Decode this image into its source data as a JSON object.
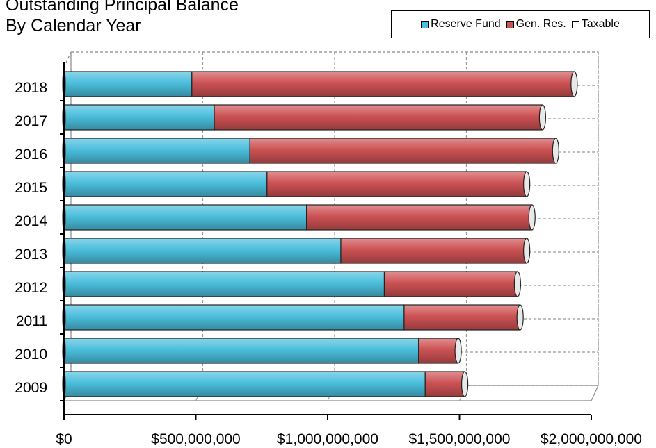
{
  "chart_data": {
    "type": "bar",
    "orientation": "horizontal",
    "stacked": true,
    "style_3d": true,
    "title": [
      "Outstanding Principal Balance",
      "By Calendar Year"
    ],
    "categories": [
      "2009",
      "2010",
      "2011",
      "2012",
      "2013",
      "2014",
      "2015",
      "2016",
      "2017",
      "2018"
    ],
    "series": [
      {
        "name": "Reserve Fund",
        "color": "#4bbfdd",
        "values": [
          1370000000,
          1345000000,
          1290000000,
          1215000000,
          1050000000,
          920000000,
          770000000,
          705000000,
          570000000,
          485000000
        ]
      },
      {
        "name": "Gen. Res.",
        "color": "#cd5254",
        "values": [
          150000000,
          150000000,
          440000000,
          505000000,
          705000000,
          855000000,
          985000000,
          1160000000,
          1245000000,
          1450000000
        ]
      },
      {
        "name": "Taxable",
        "color": "#ffffff",
        "values": [
          0,
          0,
          0,
          0,
          0,
          0,
          0,
          0,
          0,
          0
        ]
      }
    ],
    "xlim": [
      0,
      2000000000
    ],
    "x_ticks": [
      0,
      500000000,
      1000000000,
      1500000000,
      2000000000
    ],
    "x_tick_labels": [
      "$0",
      "$500,000,000",
      "$1,000,000,000",
      "$1,500,000,000",
      "$2,000,000,000"
    ],
    "grid": true,
    "grid_style": "dashed",
    "legend_position": "top-right",
    "xlabel": "",
    "ylabel": ""
  }
}
